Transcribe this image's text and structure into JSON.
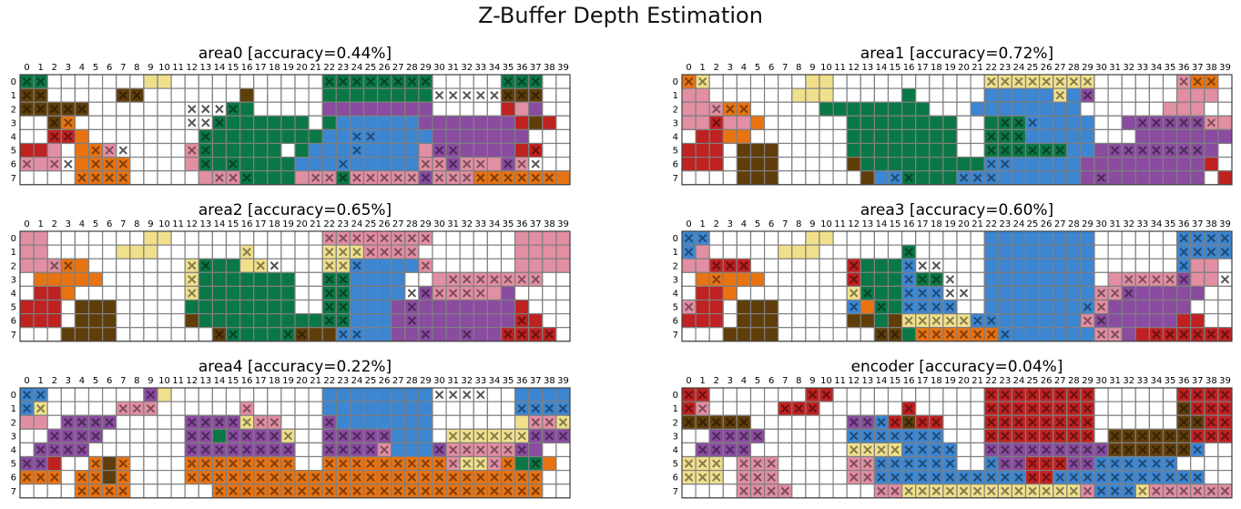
{
  "title": "Z-Buffer Depth Estimation",
  "colors": {
    "w": "#ffffff",
    "y": "#f0e08c",
    "p": "#e28ea3",
    "o": "#e87312",
    "r": "#c02121",
    "b": "#603e0a",
    "g": "#0a7846",
    "u": "#3c86d2",
    "v": "#8a4ba0",
    "grid": "#7f7f7f"
  },
  "chart_data": [
    {
      "type": "heatmap",
      "title": "area0 [accuracy=0.44%]",
      "x_ticks": [
        "0",
        "1",
        "2",
        "3",
        "4",
        "5",
        "6",
        "7",
        "8",
        "9",
        "10",
        "11",
        "12",
        "13",
        "14",
        "15",
        "16",
        "17",
        "18",
        "19",
        "20",
        "21",
        "22",
        "23",
        "24",
        "25",
        "26",
        "27",
        "28",
        "29",
        "30",
        "31",
        "32",
        "33",
        "34",
        "35",
        "36",
        "37",
        "38",
        "39"
      ],
      "y_ticks": [
        "0",
        "1",
        "2",
        "3",
        "4",
        "5",
        "6",
        "7"
      ],
      "grid": [
        "gg.......yy...........gggggggg.....ggg",
        "bb.....bb.......b.....gggggggg.....bbb",
        "bbbbb.........wgg.....vvvvvvvv.....rpv",
        "..bo..........ggggggg.guuuuuuvvvvvvvrbr",
        "..rro........ggggggggguuuuuuuuvvvvvvv...",
        "rrp.oop.....pgggggg.guuuuuuuupvvvvvvrr..",
        "ppp.oooo....pggggggguuuuuuuuuppvpppvp.",
        "....oooo.....pppggggpppgpppppvpppooooooo"
      ],
      "marks": [
        "xx....................xxxxxxxx.....xxx",
        "xx.....xx.....................xxxxxxxx.....xxx",
        "xxxxx.......xxxx..............................xxx",
        "..xx........xxx.................................xx",
        "..xx.........x..........xx..........",
        ".....xxx....xx..........x.....xx.....x",
        "x.xx.xxx.....x.x.......x.....xxxxx.xxx",
        "....xxxx......xxx....xxxxxxxxxxxxxxxxxx"
      ]
    },
    {
      "type": "heatmap",
      "title": "area1 [accuracy=0.72%]",
      "x_ticks": [
        "0",
        "1",
        "2",
        "3",
        "4",
        "5",
        "6",
        "7",
        "8",
        "9",
        "10",
        "11",
        "12",
        "13",
        "14",
        "15",
        "16",
        "17",
        "18",
        "19",
        "20",
        "21",
        "22",
        "23",
        "24",
        "25",
        "26",
        "27",
        "28",
        "29",
        "30",
        "31",
        "32",
        "33",
        "34",
        "35",
        "36",
        "37",
        "38",
        "39"
      ],
      "y_ticks": [
        "0",
        "1",
        "2",
        "3",
        "4",
        "5",
        "6",
        "7"
      ],
      "grid": [
        "oy.......yy...........yyyyyyyy......poo",
        "pp......yyy.....g.....uuuuuyuv......ppp",
        "pppoo.....gggggggg...uuuuuuuu......ppp",
        "pprppo......gggggggg..ggguuuuu..vvvvvvpp",
        ".rroo.......gggggggg..ggguuuuu...vvvvvvvv",
        "rrr.bbb.....gggggggg..gggggguuvvvvvvvvv.",
        "rrr.bbb.....bggggggggguuuuuuuvvvvvvvvvr.",
        "....bbb......buugggguuuuuuuuuvvvvvvvvv.r"
      ],
      "marks": [
        "xx....................xxxxxxxx......xxx",
        "...........................x.x",
        "..xxx.................................",
        "..x....................xxx.......xxxxxx",
        "......................xxx.......",
        "......................xxxxxx...xxxxxxx",
        "......................xx......",
        "...............xx...xxx.......x......"
      ]
    },
    {
      "type": "heatmap",
      "title": "area2 [accuracy=0.65%]",
      "x_ticks": [
        "0",
        "1",
        "2",
        "3",
        "4",
        "5",
        "6",
        "7",
        "8",
        "9",
        "10",
        "11",
        "12",
        "13",
        "14",
        "15",
        "16",
        "17",
        "18",
        "19",
        "20",
        "21",
        "22",
        "23",
        "24",
        "25",
        "26",
        "27",
        "28",
        "29",
        "30",
        "31",
        "32",
        "33",
        "34",
        "35",
        "36",
        "37",
        "38",
        "39"
      ],
      "y_ticks": [
        "0",
        "1",
        "2",
        "3",
        "4",
        "5",
        "6",
        "7"
      ],
      "grid": [
        "pp.......yy...........pppppppp......pppp",
        "pp.....yyy......y.....yyypppp.......pppp",
        "pppoo.......ygggyy....yyuuuuup......pppp",
        ".ooooo......yggggggg..gguuuu..pppppppp",
        ".rro........yggggggg..gguuuu.vpppppv....",
        "rrr.bbb.....gggggggg..gguuuvvvvvvvvvr...",
        "rrr.bbb.....bggggggggggguuuvvvvvvvvvrr..",
        "...bbbb.......bgggggbbbuuuuvvvvvvvvrrrr."
      ],
      "marks": [
        "......................xxxxxxxx.........",
        "................x.....xxxxxxx.........",
        "..xx........xx...xx...xxx....x......",
        "............x.........xx.......xxxxxxx.",
        "............x.........xx....xxxxxx......",
        "......................xx....x.......",
        "......................xx....x.......x...",
        "..............xx...xx..xx....x..x..xxxx."
      ]
    },
    {
      "type": "heatmap",
      "title": "area3 [accuracy=0.60%]",
      "x_ticks": [
        "0",
        "1",
        "2",
        "3",
        "4",
        "5",
        "6",
        "7",
        "8",
        "9",
        "10",
        "11",
        "12",
        "13",
        "14",
        "15",
        "16",
        "17",
        "18",
        "19",
        "20",
        "21",
        "22",
        "23",
        "24",
        "25",
        "26",
        "27",
        "28",
        "29",
        "30",
        "31",
        "32",
        "33",
        "34",
        "35",
        "36",
        "37",
        "38",
        "39"
      ],
      "y_ticks": [
        "0",
        "1",
        "2",
        "3",
        "4",
        "5",
        "6",
        "7"
      ],
      "grid": [
        "uu.......yy...........uuuuuuuu......uuuu",
        "up.....yyy......g.....uuuuuuuu......uuuu",
        "pprrr.......rgggu.....uuuuuuuu......upp.",
        ".ooooo......rgggugg...uuuuuuuu.pppppvpp",
        ".rro........yggguuu...uuuuuuuuppvvvvvv..",
        "prr.bbb.....uogguuuu..uuuuuuuupvvvvvv...",
        "rrr.bbb.....bbgbyyyyyuuuuuuuupvvvvvvrr..",
        "...bbbb.......bbgoooooouuuuuuuppvrrrrrrr"
      ],
      "marks": [
        "xx..................................xxxx",
        "x...............x...................xxxx",
        "..xxx.......x...xxx.................x...",
        "..x.........x...xxxx............xxxxx..x",
        "............xx..xxxxx.........xxx.......",
        "x...........x.x.xxxx.........xx.........",
        "................xxxxxxx......xx.........",
        "..............xx.xxxxxxx......xx..xxxxxx"
      ]
    },
    {
      "type": "heatmap",
      "title": "area4 [accuracy=0.22%]",
      "x_ticks": [
        "0",
        "1",
        "2",
        "3",
        "4",
        "5",
        "6",
        "7",
        "8",
        "9",
        "10",
        "11",
        "12",
        "13",
        "14",
        "15",
        "16",
        "17",
        "18",
        "19",
        "20",
        "21",
        "22",
        "23",
        "24",
        "25",
        "26",
        "27",
        "28",
        "29",
        "30",
        "31",
        "32",
        "33",
        "34",
        "35",
        "36",
        "37",
        "38",
        "39"
      ],
      "y_ticks": [
        "0",
        "1",
        "2",
        "3",
        "4",
        "5",
        "6",
        "7"
      ],
      "grid": [
        "uu.......vy...........uuuuuuuu......uuuu",
        "uy.....ppp......p.....uuuuuuuu......uuuu",
        "pp.vvvv.....vvvvypp...vuuuuuuu......yppy",
        "..vvvv......vvgvvvvy..vvvvvuuu.yyyyyyvvvv",
        ".vvvv.......vvvvvvvv..vvvvpuuuvpppppvv..",
        "vvr..obo....oooooooo..ooooooooopyypoggo..",
        "ooo.oobo....oooooooooooooooooooooooooo..",
        "....oooo......oooooooooooooooooooooooo.."
      ],
      "marks": [
        "xx.......x....................xxxx",
        "xx.....xxx......x...................xxxx",
        "...xxxx.....xxxxxxx...x..............xxxx",
        "..xxxx......xx.xxxxx..xxxxx....xxxxxxxxxx",
        ".xxxx.......xxxxxxxx..xxxxx...xxxxxxx...",
        "xx...x.x....xxxxxxxx..xxxxxxxxxxxxxx.x..",
        "xxx.xx.x....xxxxxxxxxxxxxxxxxxxxxxxxxx..",
        "....xxxx......xxxxxxxxxxxxxxxxxxxxxxxx.."
      ]
    },
    {
      "type": "heatmap",
      "title": "encoder [accuracy=0.04%]",
      "x_ticks": [
        "0",
        "1",
        "2",
        "3",
        "4",
        "5",
        "6",
        "7",
        "8",
        "9",
        "10",
        "11",
        "12",
        "13",
        "14",
        "15",
        "16",
        "17",
        "18",
        "19",
        "20",
        "21",
        "22",
        "23",
        "24",
        "25",
        "26",
        "27",
        "28",
        "29",
        "30",
        "31",
        "32",
        "33",
        "34",
        "35",
        "36",
        "37",
        "38",
        "39"
      ],
      "y_ticks": [
        "0",
        "1",
        "2",
        "3",
        "4",
        "5",
        "6",
        "7"
      ],
      "grid": [
        "rr.......rr...........rrrrrrrr......rrrr",
        "rp.....rrr......r.....rrrrrrrr......brrr",
        "bbbbb.......vvurbrr...rrrrrrrr......bbrr",
        "..vvvv......uuuuuuu...rrrrrrrr.bbbbbbrrr",
        ".vvvv.......yyyyuuuu..vvvvvvvvvbbbbbbu..",
        "yyy.ppp.....ppuuuuuu..uvvrrrvvuuuuuu....",
        "yyy.ppp.....ppuuuuuuuuuuurruuuuuuuuuuu..",
        "....pppp......ppyyyyyyyyyyyyypuuuypppppp"
      ],
      "marks": [
        "xx.......xx...........xxxxxxxx......xxxx",
        "xx.....xxx......x.....xxxxxxxx......xxxx",
        "xxxxx.......xxxxxxx...xxxxxxxx......xxxx",
        "..xxxx......xxxxxxx...xxxxxxxx.xxxxxxxxx",
        ".xxxx.......xxxxxxxx..xxxxxxxxxxxxxxxx..",
        "xxx.xxx.....xxxxxxxx..xxxxxxxxxxxxxx....",
        "xxx.xxx.....xxxxxxxxxxxxxxxxxxxxxxxxxx..",
        "....xxxx......xxxxxxxxxxxxxxxxxxxxxxxxxx"
      ]
    }
  ]
}
